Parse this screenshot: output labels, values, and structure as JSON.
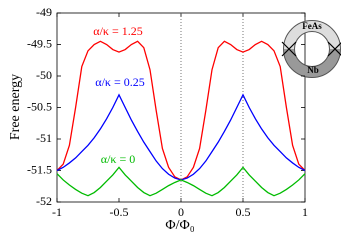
{
  "chart_data": {
    "type": "line",
    "xlabel": "Φ/Φ₀",
    "ylabel": "Free energy",
    "x": [
      -1,
      -0.95,
      -0.9,
      -0.85,
      -0.8,
      -0.75,
      -0.7,
      -0.65,
      -0.6,
      -0.55,
      -0.5,
      -0.45,
      -0.4,
      -0.35,
      -0.3,
      -0.25,
      -0.2,
      -0.15,
      -0.1,
      -0.05,
      0,
      0.05,
      0.1,
      0.15,
      0.2,
      0.25,
      0.3,
      0.35,
      0.4,
      0.45,
      0.5,
      0.55,
      0.6,
      0.65,
      0.7,
      0.75,
      0.8,
      0.85,
      0.9,
      0.95,
      1
    ],
    "series": [
      {
        "name": "α/κ = 1.25",
        "color": "#ff0000",
        "values": [
          -51.5,
          -51.4,
          -51.1,
          -50.5,
          -49.85,
          -49.6,
          -49.5,
          -49.45,
          -49.5,
          -49.58,
          -49.62,
          -49.58,
          -49.5,
          -49.45,
          -49.55,
          -49.9,
          -50.55,
          -51.15,
          -51.45,
          -51.6,
          -51.65,
          -51.6,
          -51.45,
          -51.15,
          -50.55,
          -49.9,
          -49.55,
          -49.45,
          -49.5,
          -49.58,
          -49.62,
          -49.58,
          -49.5,
          -49.45,
          -49.5,
          -49.6,
          -49.85,
          -50.5,
          -51.1,
          -51.4,
          -51.5
        ]
      },
      {
        "name": "α/κ = 0.25",
        "color": "#0000ff",
        "values": [
          -51.5,
          -51.45,
          -51.38,
          -51.3,
          -51.2,
          -51.1,
          -50.98,
          -50.84,
          -50.68,
          -50.5,
          -50.3,
          -50.5,
          -50.7,
          -50.88,
          -51.05,
          -51.2,
          -51.35,
          -51.47,
          -51.56,
          -51.62,
          -51.65,
          -51.62,
          -51.56,
          -51.47,
          -51.35,
          -51.2,
          -51.05,
          -50.88,
          -50.7,
          -50.5,
          -50.3,
          -50.5,
          -50.68,
          -50.84,
          -50.98,
          -51.1,
          -51.2,
          -51.3,
          -51.38,
          -51.45,
          -51.5
        ]
      },
      {
        "name": "α/κ = 0",
        "color": "#00bb00",
        "values": [
          -51.55,
          -51.65,
          -51.73,
          -51.8,
          -51.86,
          -51.9,
          -51.85,
          -51.77,
          -51.67,
          -51.57,
          -51.45,
          -51.57,
          -51.67,
          -51.77,
          -51.85,
          -51.9,
          -51.86,
          -51.8,
          -51.74,
          -51.69,
          -51.65,
          -51.69,
          -51.74,
          -51.8,
          -51.86,
          -51.9,
          -51.85,
          -51.77,
          -51.67,
          -51.57,
          -51.45,
          -51.57,
          -51.67,
          -51.77,
          -51.85,
          -51.9,
          -51.86,
          -51.8,
          -51.73,
          -51.65,
          -51.55
        ]
      }
    ],
    "xlim": [
      -1,
      1
    ],
    "xticks": [
      -1,
      -0.5,
      0,
      0.5,
      1
    ],
    "ylim": [
      -52,
      -49
    ],
    "yticks": [
      -52,
      -51.5,
      -51,
      -50.5,
      -50,
      -49.5,
      -49
    ],
    "vlines": [
      0,
      0.5
    ],
    "inset": {
      "labels": [
        "FeAs",
        "Nb"
      ]
    }
  }
}
